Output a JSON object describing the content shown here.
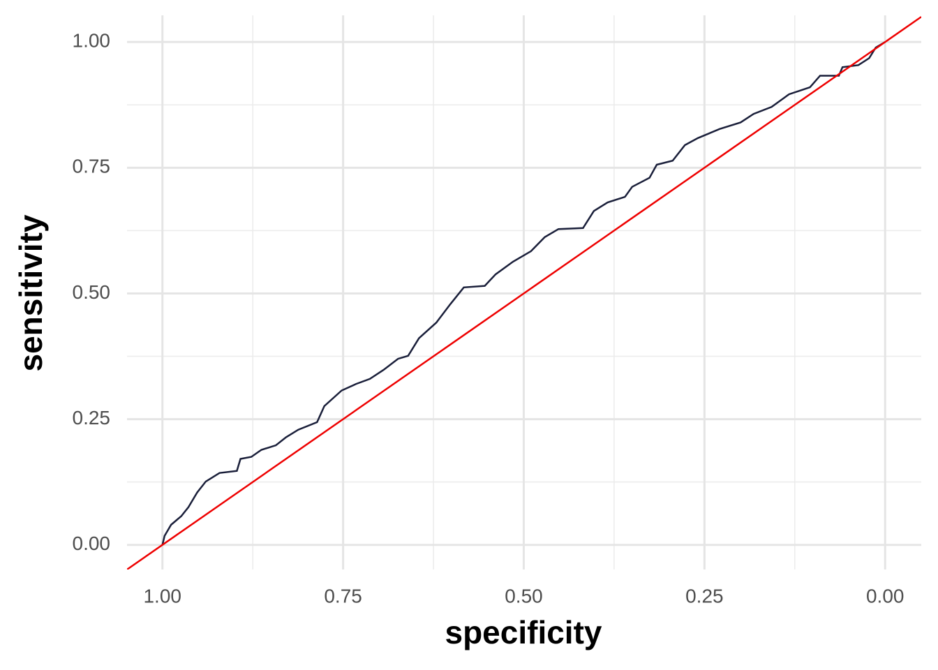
{
  "chart_data": {
    "type": "line",
    "x_label": "specificity",
    "y_label": "sensitivity",
    "xlim": [
      1.049,
      -0.05
    ],
    "ylim": [
      -0.049,
      1.053
    ],
    "xticks": [
      {
        "value": 1,
        "label": "1.00"
      },
      0.75,
      {
        "value": 0.5,
        "label": "0.50"
      },
      0.25,
      {
        "value": 0,
        "label": "0.00"
      }
    ],
    "yticks": [
      {
        "value": 0,
        "label": "0.00"
      },
      0.25,
      {
        "value": 0.5,
        "label": "0.50"
      },
      0.75,
      {
        "value": 1,
        "label": "1.00"
      }
    ],
    "xminor": [
      0.875,
      0.625,
      0.375,
      0.125
    ],
    "yminor": [
      0.125,
      0.375,
      0.625,
      0.875
    ],
    "grid": true,
    "x": [
      1,
      0.997,
      0.988,
      0.974,
      0.964,
      0.952,
      0.94,
      0.921,
      0.897,
      0.892,
      0.877,
      0.863,
      0.843,
      0.829,
      0.812,
      0.786,
      0.776,
      0.752,
      0.732,
      0.713,
      0.694,
      0.674,
      0.66,
      0.645,
      0.621,
      0.602,
      0.583,
      0.554,
      0.539,
      0.515,
      0.49,
      0.471,
      0.452,
      0.418,
      0.403,
      0.384,
      0.36,
      0.35,
      0.326,
      0.316,
      0.294,
      0.277,
      0.259,
      0.229,
      0.2,
      0.182,
      0.157,
      0.133,
      0.104,
      0.09,
      0.064,
      0.059,
      0.037,
      0.022,
      0.013,
      0
    ],
    "series": [
      {
        "color": "#1a1f3a",
        "values": [
          0,
          0.018,
          0.04,
          0.057,
          0.075,
          0.104,
          0.126,
          0.143,
          0.147,
          0.171,
          0.175,
          0.189,
          0.198,
          0.214,
          0.229,
          0.244,
          0.276,
          0.307,
          0.32,
          0.33,
          0.348,
          0.37,
          0.376,
          0.411,
          0.442,
          0.478,
          0.512,
          0.515,
          0.538,
          0.563,
          0.584,
          0.612,
          0.628,
          0.63,
          0.664,
          0.681,
          0.692,
          0.712,
          0.73,
          0.756,
          0.764,
          0.795,
          0.809,
          0.827,
          0.84,
          0.857,
          0.871,
          0.896,
          0.91,
          0.933,
          0.933,
          0.95,
          0.954,
          0.968,
          0.989,
          1
        ]
      }
    ],
    "abline": {
      "intercept": 1,
      "slope": -1,
      "color": "#ee0000"
    }
  }
}
